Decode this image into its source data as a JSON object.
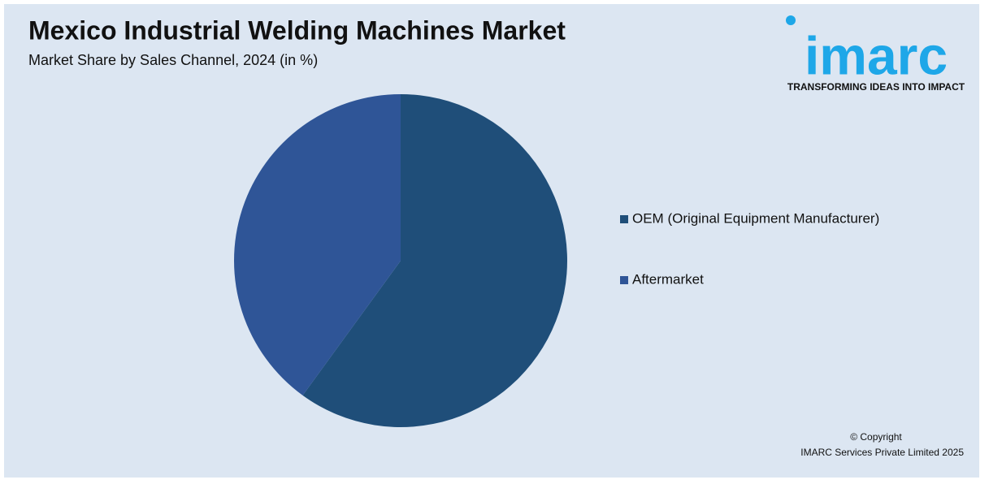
{
  "chart_data": {
    "type": "pie",
    "title": "Mexico Industrial Welding Machines Market",
    "subtitle": "Market Share by Sales Channel, 2024 (in %)",
    "categories": [
      "OEM (Original Equipment Manufacturer)",
      "Aftermarket"
    ],
    "values": [
      60,
      40
    ],
    "colors": [
      "#1f4e79",
      "#2f5597"
    ],
    "legend": "right"
  },
  "logo": {
    "name": "imarc",
    "tagline": "TRANSFORMING IDEAS INTO IMPACT"
  },
  "footer": {
    "copyright": "© Copyright",
    "owner": "IMARC Services Private Limited 2025"
  }
}
